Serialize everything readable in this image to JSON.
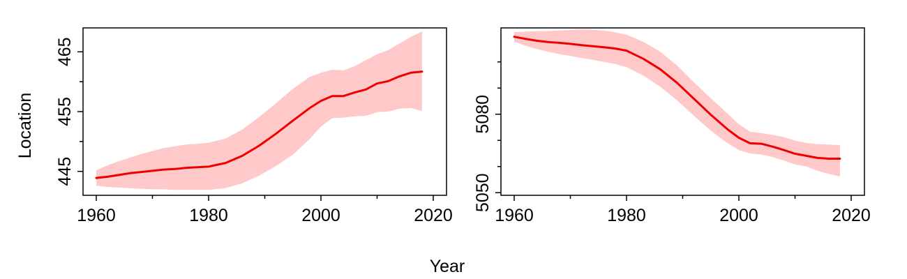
{
  "figure": {
    "xlabel": "Year",
    "ylabel": "Location",
    "colors": {
      "line": "#ee0000",
      "band": "#ffc9c9",
      "axis": "#000000"
    }
  },
  "chart_data": [
    {
      "type": "line",
      "xlim": [
        1960,
        2020
      ],
      "ylim": [
        441,
        469
      ],
      "xticks": [
        1960,
        1980,
        2000,
        2020
      ],
      "xticks_minor": [
        1970,
        1990,
        2010
      ],
      "yticks": [
        445,
        455,
        465
      ],
      "yticks_minor": [
        450,
        460
      ],
      "grid": false,
      "series": [
        {
          "x": [
            1960,
            1962,
            1964,
            1966,
            1968,
            1970,
            1972,
            1974,
            1976,
            1978,
            1980,
            1983,
            1986,
            1989,
            1992,
            1995,
            1998,
            2000,
            2002,
            2004,
            2006,
            2008,
            2010,
            2012,
            2014,
            2016,
            2018
          ],
          "y": [
            443.9,
            444.1,
            444.4,
            444.7,
            444.9,
            445.1,
            445.3,
            445.4,
            445.6,
            445.7,
            445.8,
            446.4,
            447.6,
            449.3,
            451.3,
            453.5,
            455.6,
            456.8,
            457.6,
            457.6,
            458.2,
            458.7,
            459.7,
            460.1,
            460.9,
            461.5,
            461.7
          ],
          "lower": [
            442.6,
            442.4,
            442.3,
            442.2,
            442.1,
            442.0,
            442.0,
            441.9,
            441.9,
            441.9,
            441.9,
            442.2,
            443.0,
            444.3,
            445.9,
            447.8,
            450.4,
            452.5,
            453.9,
            454.0,
            454.2,
            454.3,
            454.9,
            455.0,
            455.5,
            455.6,
            455.1
          ],
          "upper": [
            445.2,
            446.0,
            446.7,
            447.3,
            447.9,
            448.4,
            448.9,
            449.2,
            449.5,
            449.6,
            449.8,
            450.5,
            452.0,
            454.1,
            456.4,
            458.8,
            460.8,
            461.5,
            462.0,
            461.9,
            462.6,
            463.6,
            464.6,
            465.3,
            466.4,
            467.5,
            468.4
          ]
        }
      ]
    },
    {
      "type": "line",
      "xlim": [
        1960,
        2020
      ],
      "ylim": [
        5049,
        5113
      ],
      "xticks": [
        1960,
        1980,
        2000,
        2020
      ],
      "xticks_minor": [
        1970,
        1990,
        2010
      ],
      "yticks": [
        5050,
        5080
      ],
      "yticks_minor": [
        5060,
        5070,
        5090,
        5100
      ],
      "grid": false,
      "series": [
        {
          "x": [
            1960,
            1962,
            1964,
            1966,
            1968,
            1970,
            1972,
            1974,
            1976,
            1978,
            1980,
            1983,
            1986,
            1989,
            1992,
            1995,
            1998,
            2000,
            2002,
            2004,
            2006,
            2008,
            2010,
            2012,
            2014,
            2016,
            2018
          ],
          "y": [
            5109.6,
            5108.8,
            5108.1,
            5107.6,
            5107.3,
            5106.9,
            5106.4,
            5106.0,
            5105.6,
            5105.1,
            5104.3,
            5101.2,
            5097.2,
            5092.0,
            5085.9,
            5079.8,
            5074.2,
            5071.0,
            5068.9,
            5068.7,
            5067.6,
            5066.3,
            5064.9,
            5064.1,
            5063.3,
            5063.0,
            5063.0
          ],
          "lower": [
            5107.8,
            5106.2,
            5104.9,
            5103.9,
            5103.0,
            5102.3,
            5101.5,
            5100.8,
            5100.0,
            5099.2,
            5098.0,
            5094.8,
            5090.5,
            5085.3,
            5079.4,
            5073.7,
            5068.9,
            5066.3,
            5065.0,
            5064.6,
            5063.6,
            5062.3,
            5060.8,
            5060.0,
            5058.4,
            5057.2,
            5056.2
          ],
          "upper": [
            5111.3,
            5111.6,
            5111.7,
            5111.8,
            5112.0,
            5112.2,
            5112.4,
            5112.3,
            5112.0,
            5111.3,
            5110.4,
            5107.7,
            5103.9,
            5098.6,
            5092.2,
            5086.1,
            5080.2,
            5076.2,
            5073.3,
            5072.8,
            5072.1,
            5071.3,
            5069.9,
            5069.0,
            5068.6,
            5068.4,
            5068.2
          ]
        }
      ]
    }
  ]
}
